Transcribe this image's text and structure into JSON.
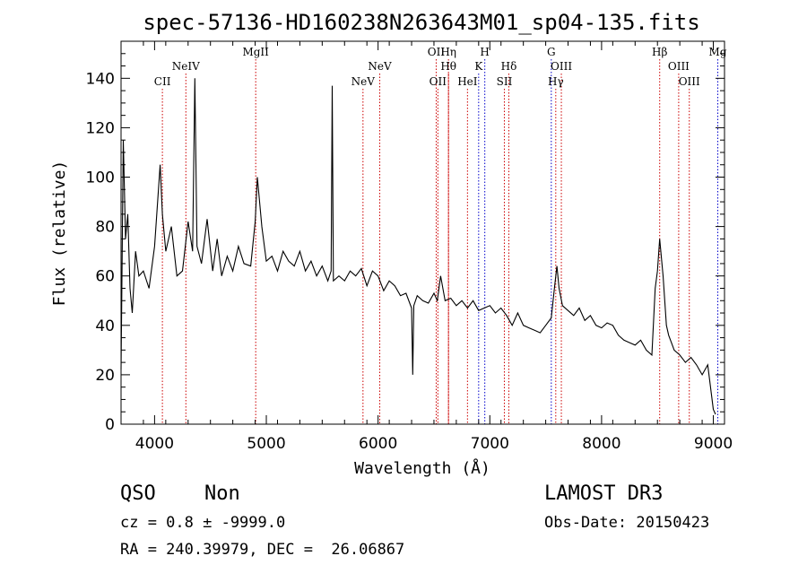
{
  "chart_data": {
    "type": "line",
    "title": "spec-57136-HD160238N263643M01_sp04-135.fits",
    "xlabel": "Wavelength (Å)",
    "ylabel": "Flux (relative)",
    "xlim": [
      3700,
      9100
    ],
    "ylim": [
      0,
      155
    ],
    "xticks": [
      4000,
      5000,
      6000,
      7000,
      8000,
      9000
    ],
    "yticks": [
      0,
      20,
      40,
      60,
      80,
      100,
      120,
      140
    ],
    "grid": false,
    "line_color": "#000000",
    "marker_color": "#cc0000",
    "spectrum": {
      "x": [
        3700,
        3720,
        3740,
        3760,
        3780,
        3800,
        3830,
        3860,
        3900,
        3950,
        4000,
        4050,
        4070,
        4100,
        4150,
        4200,
        4250,
        4300,
        4340,
        4360,
        4380,
        4420,
        4470,
        4520,
        4560,
        4600,
        4650,
        4700,
        4750,
        4800,
        4860,
        4900,
        4920,
        4960,
        5000,
        5050,
        5100,
        5150,
        5200,
        5250,
        5300,
        5350,
        5400,
        5450,
        5500,
        5550,
        5580,
        5590,
        5600,
        5650,
        5700,
        5750,
        5800,
        5850,
        5900,
        5950,
        6000,
        6050,
        6100,
        6150,
        6200,
        6250,
        6300,
        6310,
        6320,
        6350,
        6400,
        6450,
        6500,
        6530,
        6560,
        6600,
        6650,
        6700,
        6750,
        6800,
        6850,
        6900,
        6950,
        7000,
        7050,
        7100,
        7150,
        7200,
        7250,
        7300,
        7350,
        7400,
        7450,
        7500,
        7550,
        7580,
        7600,
        7620,
        7650,
        7700,
        7750,
        7800,
        7850,
        7900,
        7950,
        8000,
        8050,
        8100,
        8150,
        8200,
        8250,
        8300,
        8350,
        8400,
        8450,
        8480,
        8500,
        8520,
        8550,
        8580,
        8600,
        8650,
        8700,
        8750,
        8800,
        8850,
        8900,
        8950,
        9000,
        9020
      ],
      "y": [
        22,
        115,
        75,
        85,
        55,
        45,
        70,
        60,
        62,
        55,
        72,
        105,
        85,
        70,
        80,
        60,
        62,
        82,
        70,
        140,
        72,
        65,
        83,
        62,
        75,
        60,
        68,
        62,
        72,
        65,
        64,
        82,
        100,
        80,
        66,
        68,
        62,
        70,
        66,
        64,
        70,
        62,
        66,
        60,
        64,
        58,
        62,
        137,
        58,
        60,
        58,
        62,
        60,
        63,
        56,
        62,
        60,
        54,
        58,
        56,
        52,
        53,
        47,
        20,
        48,
        52,
        50,
        49,
        53,
        50,
        60,
        50,
        51,
        48,
        50,
        47,
        50,
        46,
        47,
        48,
        45,
        47,
        44,
        40,
        45,
        40,
        39,
        38,
        37,
        40,
        43,
        56,
        64,
        55,
        48,
        46,
        44,
        47,
        42,
        44,
        40,
        39,
        41,
        40,
        36,
        34,
        33,
        32,
        34,
        30,
        28,
        55,
        62,
        75,
        60,
        40,
        36,
        30,
        28,
        25,
        27,
        24,
        20,
        24,
        6,
        4
      ]
    },
    "lines": [
      {
        "label": "CII",
        "x": 4070,
        "row": 3,
        "color": "#cc0000"
      },
      {
        "label": "NeIV",
        "x": 4280,
        "row": 2,
        "color": "#cc0000"
      },
      {
        "label": "MgII",
        "x": 4905,
        "row": 1,
        "color": "#cc0000"
      },
      {
        "label": "NeV",
        "x": 5865,
        "row": 3,
        "color": "#cc0000"
      },
      {
        "label": "NeV",
        "x": 6015,
        "row": 2,
        "color": "#cc0000"
      },
      {
        "label": "OII",
        "x": 6520,
        "row": 1,
        "color": "#cc0000"
      },
      {
        "label": "OII",
        "x": 6535,
        "row": 3,
        "color": "#cc0000"
      },
      {
        "label": "Hη",
        "x": 6630,
        "row": 1,
        "color": "#cc0000"
      },
      {
        "label": "Hθ",
        "x": 6630,
        "row": 2,
        "color": "#cc0000"
      },
      {
        "label": "HeI",
        "x": 6800,
        "row": 3,
        "color": "#cc0000"
      },
      {
        "label": "H",
        "x": 6955,
        "row": 1,
        "color": "#0000cc"
      },
      {
        "label": "K",
        "x": 6900,
        "row": 2,
        "color": "#0000cc"
      },
      {
        "label": "Hδ",
        "x": 7170,
        "row": 2,
        "color": "#cc0000"
      },
      {
        "label": "SII",
        "x": 7130,
        "row": 3,
        "color": "#cc0000"
      },
      {
        "label": "G",
        "x": 7550,
        "row": 1,
        "color": "#0000cc"
      },
      {
        "label": "OIII",
        "x": 7640,
        "row": 2,
        "color": "#cc0000"
      },
      {
        "label": "Hγ",
        "x": 7590,
        "row": 3,
        "color": "#cc0000"
      },
      {
        "label": "Hβ",
        "x": 8520,
        "row": 1,
        "color": "#cc0000"
      },
      {
        "label": "OIII",
        "x": 8690,
        "row": 2,
        "color": "#cc0000"
      },
      {
        "label": "OIII",
        "x": 8785,
        "row": 3,
        "color": "#cc0000"
      },
      {
        "label": "Mg",
        "x": 9040,
        "row": 1,
        "color": "#0000cc"
      }
    ]
  },
  "info": {
    "class": "QSO",
    "subclass": "Non",
    "survey": "LAMOST DR3",
    "cz": "cz = 0.8 ± -9999.0",
    "obs_date": "Obs-Date: 20150423",
    "radec": "RA = 240.39979, DEC =  26.06867"
  }
}
